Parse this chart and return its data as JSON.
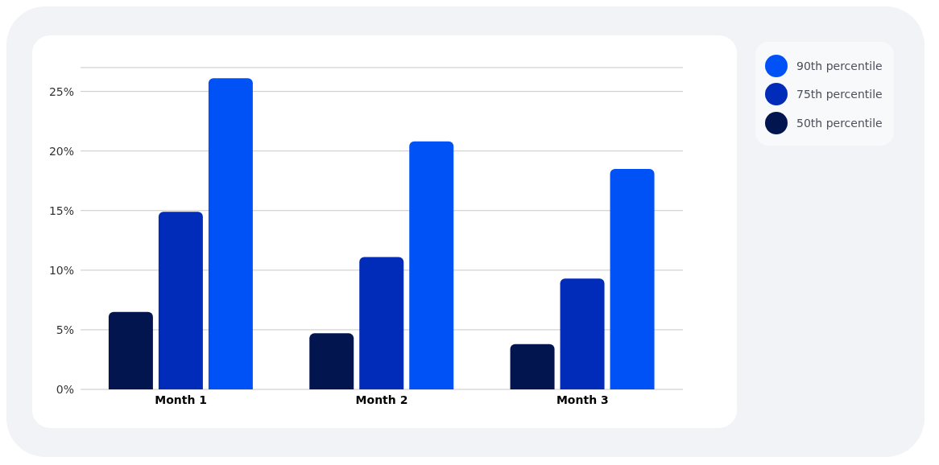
{
  "chart_data": {
    "type": "bar",
    "categories": [
      "Month 1",
      "Month 2",
      "Month 3"
    ],
    "series": [
      {
        "name": "50th percentile",
        "color": "#02154f",
        "values": [
          6.5,
          4.7,
          3.8
        ]
      },
      {
        "name": "75th percentile",
        "color": "#002cb9",
        "values": [
          14.9,
          11.1,
          9.3
        ]
      },
      {
        "name": "90th percentile",
        "color": "#0052f7",
        "values": [
          26.1,
          20.8,
          18.5
        ]
      }
    ],
    "ylim": [
      0,
      27
    ],
    "yticks": [
      {
        "value": 0,
        "label": "0%"
      },
      {
        "value": 5,
        "label": "5%"
      },
      {
        "value": 10,
        "label": "10%"
      },
      {
        "value": 15,
        "label": "15%"
      },
      {
        "value": 20,
        "label": "20%"
      },
      {
        "value": 25,
        "label": "25%"
      }
    ],
    "grid": "y",
    "legend": "top right"
  }
}
